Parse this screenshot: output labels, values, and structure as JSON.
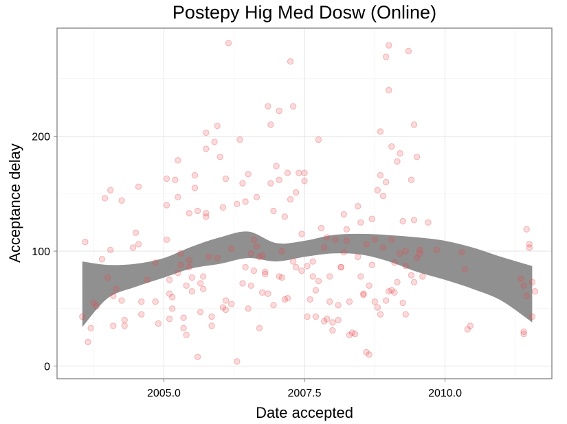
{
  "chart_data": {
    "type": "scatter",
    "title": "Postepy Hig Med Dosw (Online)",
    "xlabel": "Date accepted",
    "ylabel": "Acceptance delay",
    "xlim": [
      2003.1,
      2011.9
    ],
    "ylim": [
      -11,
      294
    ],
    "x_ticks": [
      2005.0,
      2007.5,
      2010.0
    ],
    "x_tick_labels": [
      "2005.0",
      "2007.5",
      "2010.0"
    ],
    "y_ticks": [
      0,
      100,
      200
    ],
    "y_tick_labels": [
      "0",
      "100",
      "200"
    ],
    "grid": true,
    "point_color": "#e8474a",
    "band_color": "#909090",
    "points": [
      [
        2003.6,
        108
      ],
      [
        2003.55,
        43
      ],
      [
        2003.65,
        21
      ],
      [
        2003.7,
        33
      ],
      [
        2003.75,
        55
      ],
      [
        2003.8,
        52
      ],
      [
        2003.9,
        93
      ],
      [
        2003.95,
        146
      ],
      [
        2004.0,
        77
      ],
      [
        2004.05,
        101
      ],
      [
        2004.05,
        153
      ],
      [
        2004.1,
        61
      ],
      [
        2004.1,
        35
      ],
      [
        2004.15,
        67
      ],
      [
        2004.25,
        144
      ],
      [
        2004.25,
        57
      ],
      [
        2004.3,
        40
      ],
      [
        2004.3,
        35
      ],
      [
        2004.45,
        103
      ],
      [
        2004.5,
        116
      ],
      [
        2004.55,
        156
      ],
      [
        2004.6,
        56
      ],
      [
        2004.6,
        45
      ],
      [
        2004.55,
        106
      ],
      [
        2004.7,
        75
      ],
      [
        2004.85,
        90
      ],
      [
        2004.85,
        56
      ],
      [
        2004.9,
        37
      ],
      [
        2005.05,
        163
      ],
      [
        2005.05,
        140
      ],
      [
        2005.1,
        75
      ],
      [
        2005.1,
        41
      ],
      [
        2005.15,
        60
      ],
      [
        2005.2,
        162
      ],
      [
        2005.25,
        179
      ],
      [
        2005.25,
        147
      ],
      [
        2005.3,
        98
      ],
      [
        2005.35,
        42
      ],
      [
        2005.35,
        33
      ],
      [
        2005.4,
        70
      ],
      [
        2005.45,
        86
      ],
      [
        2005.45,
        92
      ],
      [
        2005.5,
        65
      ],
      [
        2005.55,
        166
      ],
      [
        2005.55,
        155
      ],
      [
        2005.6,
        135
      ],
      [
        2005.65,
        47
      ],
      [
        2005.7,
        78
      ],
      [
        2005.75,
        189
      ],
      [
        2005.75,
        203
      ],
      [
        2005.75,
        133
      ],
      [
        2005.8,
        95
      ],
      [
        2005.85,
        43
      ],
      [
        2005.85,
        35
      ],
      [
        2005.9,
        195
      ],
      [
        2005.95,
        209
      ],
      [
        2006.0,
        182
      ],
      [
        2006.05,
        138
      ],
      [
        2006.1,
        163
      ],
      [
        2006.1,
        57
      ],
      [
        2006.15,
        281
      ],
      [
        2006.2,
        102
      ],
      [
        2006.2,
        54
      ],
      [
        2006.3,
        141
      ],
      [
        2006.35,
        197
      ],
      [
        2006.4,
        159
      ],
      [
        2006.45,
        143
      ],
      [
        2006.5,
        167
      ],
      [
        2006.55,
        98
      ],
      [
        2006.55,
        70
      ],
      [
        2006.6,
        110
      ],
      [
        2006.65,
        147
      ],
      [
        2006.7,
        95
      ],
      [
        2006.7,
        33
      ],
      [
        2006.75,
        64
      ],
      [
        2006.8,
        82
      ],
      [
        2006.85,
        226
      ],
      [
        2006.9,
        210
      ],
      [
        2006.9,
        159
      ],
      [
        2006.95,
        135
      ],
      [
        2007.0,
        174
      ],
      [
        2007.05,
        222
      ],
      [
        2007.05,
        162
      ],
      [
        2007.1,
        100
      ],
      [
        2007.1,
        77
      ],
      [
        2007.15,
        130
      ],
      [
        2007.2,
        168
      ],
      [
        2007.25,
        145
      ],
      [
        2007.25,
        265
      ],
      [
        2007.3,
        226
      ],
      [
        2007.35,
        151
      ],
      [
        2007.4,
        168
      ],
      [
        2007.45,
        115
      ],
      [
        2007.5,
        168
      ],
      [
        2007.5,
        161
      ],
      [
        2007.55,
        87
      ],
      [
        2007.6,
        58
      ],
      [
        2007.65,
        91
      ],
      [
        2007.7,
        66
      ],
      [
        2007.7,
        43
      ],
      [
        2007.75,
        197
      ],
      [
        2007.8,
        120
      ],
      [
        2007.85,
        103
      ],
      [
        2007.9,
        112
      ],
      [
        2007.95,
        78
      ],
      [
        2008.0,
        38
      ],
      [
        2008.0,
        31
      ],
      [
        2008.1,
        53
      ],
      [
        2008.1,
        40
      ],
      [
        2008.15,
        86
      ],
      [
        2008.2,
        132
      ],
      [
        2008.2,
        99
      ],
      [
        2008.25,
        109
      ],
      [
        2008.3,
        56
      ],
      [
        2008.35,
        29
      ],
      [
        2008.4,
        28
      ],
      [
        2008.45,
        139
      ],
      [
        2008.5,
        78
      ],
      [
        2008.5,
        125
      ],
      [
        2008.55,
        62
      ],
      [
        2008.6,
        12
      ],
      [
        2008.65,
        10
      ],
      [
        2008.7,
        88
      ],
      [
        2008.7,
        128
      ],
      [
        2008.75,
        110
      ],
      [
        2008.8,
        153
      ],
      [
        2008.85,
        166
      ],
      [
        2008.85,
        204
      ],
      [
        2008.9,
        148
      ],
      [
        2008.95,
        160
      ],
      [
        2008.95,
        269
      ],
      [
        2009.0,
        279
      ],
      [
        2009.0,
        240
      ],
      [
        2009.05,
        191
      ],
      [
        2009.05,
        110
      ],
      [
        2009.1,
        64
      ],
      [
        2009.15,
        178
      ],
      [
        2009.2,
        185
      ],
      [
        2009.25,
        126
      ],
      [
        2009.25,
        55
      ],
      [
        2009.3,
        100
      ],
      [
        2009.3,
        45
      ],
      [
        2009.35,
        274
      ],
      [
        2009.4,
        162
      ],
      [
        2009.45,
        210
      ],
      [
        2009.45,
        127
      ],
      [
        2009.5,
        182
      ],
      [
        2009.55,
        101
      ],
      [
        2009.6,
        78
      ],
      [
        2009.7,
        125
      ],
      [
        2009.85,
        101
      ],
      [
        2010.3,
        99
      ],
      [
        2010.35,
        84
      ],
      [
        2010.4,
        32
      ],
      [
        2010.45,
        35
      ],
      [
        2011.35,
        76
      ],
      [
        2011.4,
        70
      ],
      [
        2011.4,
        28
      ],
      [
        2011.45,
        119
      ],
      [
        2011.5,
        106
      ],
      [
        2011.5,
        103
      ],
      [
        2011.55,
        73
      ],
      [
        2011.55,
        43
      ],
      [
        2011.6,
        65
      ],
      [
        2011.45,
        61
      ],
      [
        2011.4,
        30
      ],
      [
        2005.05,
        110
      ],
      [
        2005.1,
        63
      ],
      [
        2005.15,
        50
      ],
      [
        2005.25,
        81
      ],
      [
        2005.3,
        88
      ],
      [
        2005.4,
        27
      ],
      [
        2005.45,
        133
      ],
      [
        2005.5,
        77
      ],
      [
        2005.6,
        8
      ],
      [
        2005.65,
        72
      ],
      [
        2005.7,
        67
      ],
      [
        2005.75,
        130
      ],
      [
        2005.95,
        94
      ],
      [
        2006.05,
        51
      ],
      [
        2006.1,
        49
      ],
      [
        2006.3,
        4
      ],
      [
        2006.4,
        72
      ],
      [
        2006.45,
        86
      ],
      [
        2006.5,
        50
      ],
      [
        2006.6,
        83
      ],
      [
        2006.65,
        104
      ],
      [
        2006.75,
        96
      ],
      [
        2006.8,
        80
      ],
      [
        2006.85,
        63
      ],
      [
        2006.95,
        53
      ],
      [
        2007.05,
        78
      ],
      [
        2007.15,
        58
      ],
      [
        2007.2,
        59
      ],
      [
        2007.3,
        91
      ],
      [
        2007.35,
        86
      ],
      [
        2007.45,
        83
      ],
      [
        2007.55,
        43
      ],
      [
        2007.65,
        78
      ],
      [
        2007.75,
        74
      ],
      [
        2007.85,
        39
      ],
      [
        2007.9,
        41
      ],
      [
        2007.95,
        56
      ],
      [
        2008.05,
        110
      ],
      [
        2008.15,
        86
      ],
      [
        2008.25,
        119
      ],
      [
        2008.3,
        27
      ],
      [
        2008.45,
        95
      ],
      [
        2008.55,
        63
      ],
      [
        2008.6,
        106
      ],
      [
        2008.65,
        70
      ],
      [
        2008.75,
        56
      ],
      [
        2008.8,
        51
      ],
      [
        2008.85,
        45
      ],
      [
        2008.9,
        103
      ],
      [
        2008.95,
        57
      ],
      [
        2009.0,
        65
      ],
      [
        2009.05,
        66
      ],
      [
        2009.1,
        90
      ],
      [
        2009.15,
        73
      ],
      [
        2009.2,
        98
      ],
      [
        2009.3,
        87
      ],
      [
        2009.4,
        79
      ],
      [
        2009.45,
        73
      ],
      [
        2009.5,
        94
      ],
      [
        2009.55,
        98
      ]
    ],
    "band_x": [
      2003.55,
      2004.0,
      2004.5,
      2005.0,
      2005.5,
      2006.0,
      2006.5,
      2007.0,
      2007.5,
      2008.0,
      2008.5,
      2009.0,
      2009.5,
      2010.0,
      2010.5,
      2011.0,
      2011.55
    ],
    "band_upper": [
      91,
      88,
      89,
      94,
      104,
      112,
      117,
      107,
      109,
      114,
      115,
      114,
      112,
      109,
      103,
      95,
      87
    ],
    "band_lower": [
      34,
      59,
      69,
      77,
      85,
      89,
      94,
      91,
      95,
      98,
      97,
      91,
      82,
      75,
      67,
      57,
      38
    ]
  }
}
